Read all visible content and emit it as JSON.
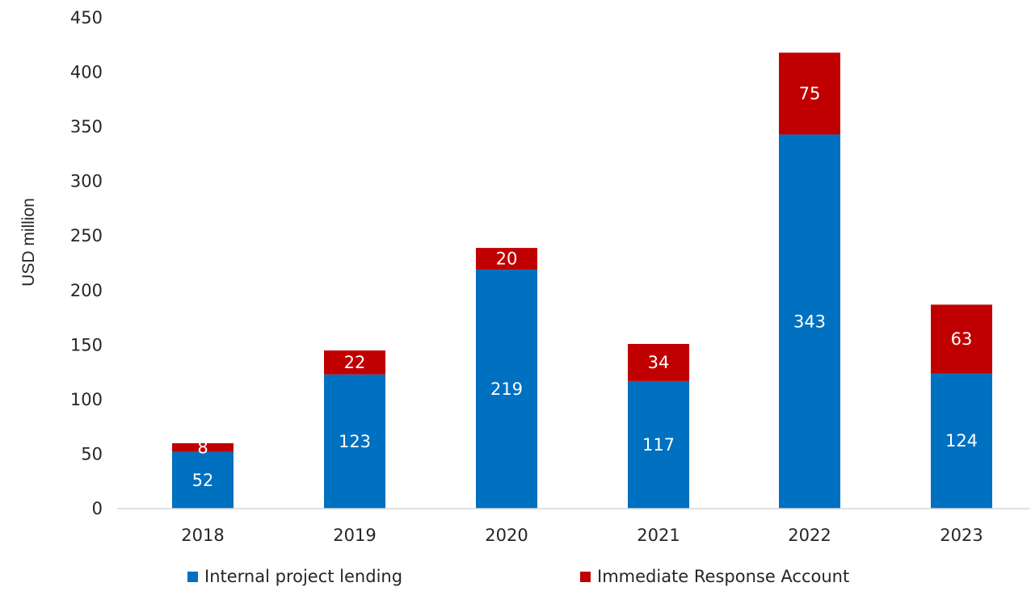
{
  "chart_data": {
    "type": "bar",
    "stacked": true,
    "categories": [
      "2018",
      "2019",
      "2020",
      "2021",
      "2022",
      "2023"
    ],
    "series": [
      {
        "name": "Internal project lending",
        "values": [
          52,
          123,
          219,
          117,
          343,
          124
        ],
        "color": "#0070C0"
      },
      {
        "name": "Immediate Response Account",
        "values": [
          8,
          22,
          20,
          34,
          75,
          63
        ],
        "color": "#C00000"
      }
    ],
    "title": "",
    "xlabel": "",
    "ylabel": "USD million",
    "ylim": [
      0,
      450
    ],
    "yticks": [
      0,
      50,
      100,
      150,
      200,
      250,
      300,
      350,
      400,
      450
    ],
    "grid": false,
    "legend_position": "bottom"
  }
}
